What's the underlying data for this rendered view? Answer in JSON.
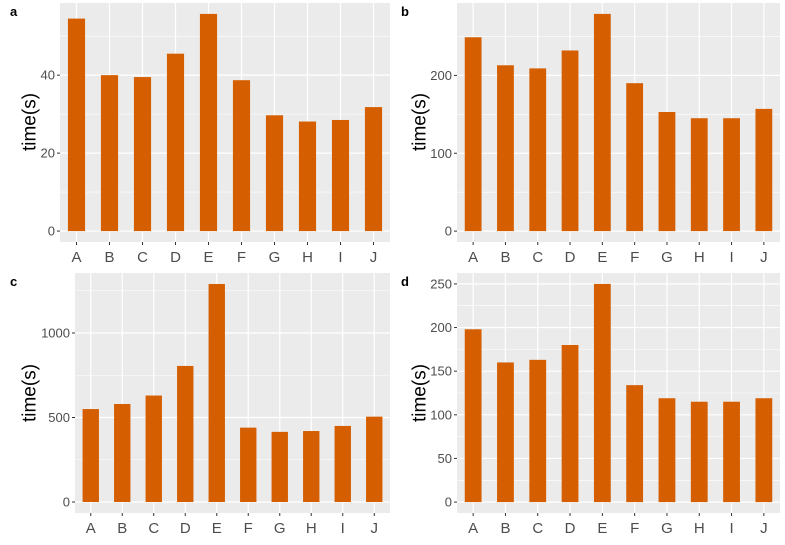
{
  "chart_data": [
    {
      "type": "bar",
      "panel": "a",
      "categories": [
        "A",
        "B",
        "C",
        "D",
        "E",
        "F",
        "G",
        "H",
        "I",
        "J"
      ],
      "values": [
        54.5,
        40,
        39.5,
        45.5,
        55.7,
        38.7,
        29.7,
        28.1,
        28.5,
        31.8
      ],
      "xlabel": "",
      "ylabel": "time(s)",
      "ylim": [
        -2.8,
        58.5
      ],
      "yticks": [
        0,
        20,
        40
      ],
      "grid": true,
      "bar_color": "#d55e00",
      "background": "#ebebeb"
    },
    {
      "type": "bar",
      "panel": "b",
      "categories": [
        "A",
        "B",
        "C",
        "D",
        "E",
        "F",
        "G",
        "H",
        "I",
        "J"
      ],
      "values": [
        249,
        213,
        209,
        232,
        279,
        190,
        153,
        145,
        145,
        157
      ],
      "xlabel": "",
      "ylabel": "time(s)",
      "ylim": [
        -14,
        293
      ],
      "yticks": [
        0,
        100,
        200
      ],
      "grid": true,
      "bar_color": "#d55e00",
      "background": "#ebebeb"
    },
    {
      "type": "bar",
      "panel": "c",
      "categories": [
        "A",
        "B",
        "C",
        "D",
        "E",
        "F",
        "G",
        "H",
        "I",
        "J"
      ],
      "values": [
        550,
        580,
        630,
        805,
        1290,
        440,
        415,
        420,
        450,
        505
      ],
      "xlabel": "",
      "ylabel": "time(s)",
      "ylim": [
        -65,
        1355
      ],
      "yticks": [
        0,
        500,
        1000
      ],
      "grid": true,
      "bar_color": "#d55e00",
      "background": "#ebebeb"
    },
    {
      "type": "bar",
      "panel": "d",
      "categories": [
        "A",
        "B",
        "C",
        "D",
        "E",
        "F",
        "G",
        "H",
        "I",
        "J"
      ],
      "values": [
        198,
        160,
        163,
        180,
        250,
        134,
        119,
        115,
        115,
        119
      ],
      "xlabel": "",
      "ylabel": "time(s)",
      "ylim": [
        -12.5,
        262.5
      ],
      "yticks": [
        0,
        50,
        100,
        150,
        200,
        250
      ],
      "grid": true,
      "bar_color": "#d55e00",
      "background": "#ebebeb"
    }
  ]
}
